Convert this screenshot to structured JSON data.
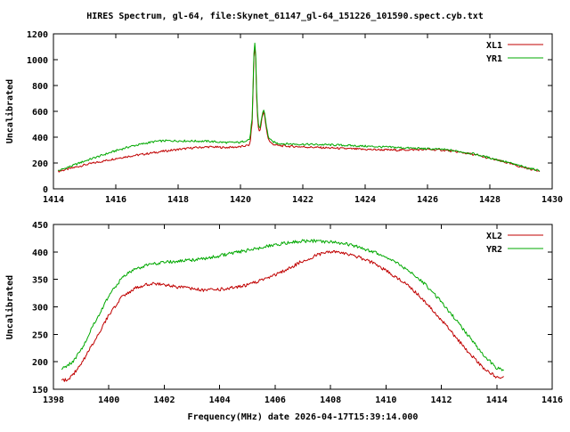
{
  "title": "HIRES Spectrum, gl-64, file:Skynet_61147_gl-64_151226_101590.spect.cyb.txt",
  "colors": {
    "background": "#ffffff",
    "axis": "#000000",
    "series_red": "#c00000",
    "series_green": "#00a800"
  },
  "chart_data": [
    {
      "type": "line",
      "title": "HIRES Spectrum, gl-64, file:Skynet_61147_gl-64_151226_101590.spect.cyb.txt",
      "ylabel": "Uncalibrated",
      "xlabel": "",
      "xlim": [
        1414,
        1430
      ],
      "ylim": [
        0,
        1200
      ],
      "xticks": [
        1414,
        1416,
        1418,
        1420,
        1422,
        1424,
        1426,
        1428,
        1430
      ],
      "yticks": [
        0,
        200,
        400,
        600,
        800,
        1000,
        1200
      ],
      "grid": false,
      "legend_position": "top-right",
      "series": [
        {
          "name": "XL1",
          "color": "#c00000",
          "noise": 8,
          "points": [
            [
              1414.15,
              135
            ],
            [
              1414.5,
              155
            ],
            [
              1415,
              185
            ],
            [
              1415.5,
              210
            ],
            [
              1416,
              235
            ],
            [
              1416.5,
              255
            ],
            [
              1417,
              272
            ],
            [
              1417.5,
              290
            ],
            [
              1418,
              305
            ],
            [
              1418.5,
              318
            ],
            [
              1419,
              325
            ],
            [
              1419.5,
              320
            ],
            [
              1420,
              325
            ],
            [
              1420.3,
              340
            ],
            [
              1420.38,
              520
            ],
            [
              1420.44,
              1090
            ],
            [
              1420.48,
              1110
            ],
            [
              1420.52,
              700
            ],
            [
              1420.56,
              500
            ],
            [
              1420.62,
              430
            ],
            [
              1420.7,
              560
            ],
            [
              1420.76,
              600
            ],
            [
              1420.82,
              480
            ],
            [
              1420.9,
              380
            ],
            [
              1421,
              350
            ],
            [
              1421.2,
              335
            ],
            [
              1421.5,
              330
            ],
            [
              1422,
              325
            ],
            [
              1423,
              315
            ],
            [
              1424,
              305
            ],
            [
              1425,
              300
            ],
            [
              1426,
              305
            ],
            [
              1426.5,
              300
            ],
            [
              1427,
              285
            ],
            [
              1427.5,
              265
            ],
            [
              1428,
              235
            ],
            [
              1428.5,
              205
            ],
            [
              1429,
              170
            ],
            [
              1429.4,
              148
            ],
            [
              1429.6,
              140
            ]
          ]
        },
        {
          "name": "YR1",
          "color": "#00a800",
          "noise": 8,
          "points": [
            [
              1414.15,
              140
            ],
            [
              1414.5,
              170
            ],
            [
              1415,
              215
            ],
            [
              1415.5,
              255
            ],
            [
              1416,
              295
            ],
            [
              1416.5,
              330
            ],
            [
              1417,
              355
            ],
            [
              1417.3,
              368
            ],
            [
              1417.6,
              372
            ],
            [
              1418,
              372
            ],
            [
              1418.5,
              370
            ],
            [
              1419,
              368
            ],
            [
              1419.3,
              362
            ],
            [
              1419.6,
              358
            ],
            [
              1420,
              360
            ],
            [
              1420.3,
              385
            ],
            [
              1420.38,
              560
            ],
            [
              1420.44,
              1110
            ],
            [
              1420.48,
              1130
            ],
            [
              1420.52,
              750
            ],
            [
              1420.56,
              530
            ],
            [
              1420.62,
              455
            ],
            [
              1420.7,
              580
            ],
            [
              1420.76,
              620
            ],
            [
              1420.82,
              500
            ],
            [
              1420.9,
              400
            ],
            [
              1421,
              368
            ],
            [
              1421.2,
              352
            ],
            [
              1421.5,
              348
            ],
            [
              1422,
              345
            ],
            [
              1423,
              340
            ],
            [
              1424,
              330
            ],
            [
              1425,
              320
            ],
            [
              1426,
              310
            ],
            [
              1426.5,
              305
            ],
            [
              1427,
              290
            ],
            [
              1427.5,
              270
            ],
            [
              1428,
              240
            ],
            [
              1428.5,
              210
            ],
            [
              1429,
              175
            ],
            [
              1429.4,
              152
            ],
            [
              1429.6,
              142
            ]
          ]
        }
      ]
    },
    {
      "type": "line",
      "title": "",
      "ylabel": "Uncalibrated",
      "xlabel": "Frequency(MHz) date 2026-04-17T15:39:14.000",
      "xlim": [
        1398,
        1416
      ],
      "ylim": [
        150,
        450
      ],
      "xticks": [
        1398,
        1400,
        1402,
        1404,
        1406,
        1408,
        1410,
        1412,
        1414,
        1416
      ],
      "yticks": [
        150,
        200,
        250,
        300,
        350,
        400,
        450
      ],
      "grid": false,
      "legend_position": "top-right",
      "series": [
        {
          "name": "XL2",
          "color": "#c00000",
          "noise": 3,
          "points": [
            [
              1398.3,
              165
            ],
            [
              1398.6,
              170
            ],
            [
              1399,
              195
            ],
            [
              1399.5,
              240
            ],
            [
              1400,
              285
            ],
            [
              1400.5,
              320
            ],
            [
              1401,
              335
            ],
            [
              1401.5,
              342
            ],
            [
              1402,
              340
            ],
            [
              1402.5,
              336
            ],
            [
              1403,
              333
            ],
            [
              1403.5,
              330
            ],
            [
              1404,
              332
            ],
            [
              1404.5,
              335
            ],
            [
              1405,
              340
            ],
            [
              1405.5,
              349
            ],
            [
              1406,
              358
            ],
            [
              1406.5,
              370
            ],
            [
              1407,
              384
            ],
            [
              1407.5,
              394
            ],
            [
              1408,
              400
            ],
            [
              1408.4,
              399
            ],
            [
              1409,
              391
            ],
            [
              1409.5,
              381
            ],
            [
              1410,
              366
            ],
            [
              1410.5,
              350
            ],
            [
              1411,
              330
            ],
            [
              1411.5,
              305
            ],
            [
              1412,
              276
            ],
            [
              1412.5,
              246
            ],
            [
              1413,
              216
            ],
            [
              1413.5,
              190
            ],
            [
              1414,
              171
            ],
            [
              1414.25,
              172
            ]
          ]
        },
        {
          "name": "YR2",
          "color": "#00a800",
          "noise": 3,
          "points": [
            [
              1398.3,
              186
            ],
            [
              1398.7,
              200
            ],
            [
              1399,
              222
            ],
            [
              1399.5,
              272
            ],
            [
              1400,
              320
            ],
            [
              1400.5,
              355
            ],
            [
              1401,
              370
            ],
            [
              1401.5,
              378
            ],
            [
              1402,
              381
            ],
            [
              1402.5,
              383
            ],
            [
              1403,
              385
            ],
            [
              1403.5,
              388
            ],
            [
              1404,
              393
            ],
            [
              1404.5,
              398
            ],
            [
              1405,
              403
            ],
            [
              1405.5,
              408
            ],
            [
              1406,
              413
            ],
            [
              1406.5,
              417
            ],
            [
              1407,
              420
            ],
            [
              1407.5,
              420
            ],
            [
              1408,
              418
            ],
            [
              1408.5,
              415
            ],
            [
              1409,
              409
            ],
            [
              1409.5,
              401
            ],
            [
              1410,
              391
            ],
            [
              1410.5,
              377
            ],
            [
              1411,
              359
            ],
            [
              1411.5,
              337
            ],
            [
              1412,
              309
            ],
            [
              1412.5,
              278
            ],
            [
              1413,
              246
            ],
            [
              1413.5,
              214
            ],
            [
              1414,
              188
            ],
            [
              1414.25,
              186
            ]
          ]
        }
      ]
    }
  ]
}
